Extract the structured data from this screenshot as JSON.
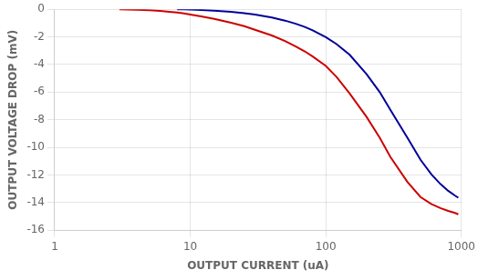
{
  "chart_data": {
    "type": "line",
    "xlabel": "OUTPUT CURRENT (uA)",
    "ylabel": "OUTPUT VOLTAGE DROP (mV)",
    "log": "x",
    "grid": true,
    "xlim": [
      1,
      1000
    ],
    "xticks": [
      1,
      10,
      100,
      1000
    ],
    "ylim": [
      -16,
      0
    ],
    "yticks": [
      0,
      -2,
      -4,
      -6,
      -8,
      -10,
      -12,
      -14,
      -16
    ],
    "series": [
      {
        "color": "#cc0000",
        "x": [
          3,
          4,
          5,
          6,
          7,
          8,
          9,
          10,
          12,
          15,
          20,
          25,
          30,
          40,
          50,
          60,
          70,
          80,
          100,
          120,
          150,
          200,
          250,
          300,
          400,
          500,
          600,
          700,
          800,
          900,
          950
        ],
        "values": [
          0.0,
          -0.03,
          -0.07,
          -0.12,
          -0.18,
          -0.24,
          -0.3,
          -0.38,
          -0.52,
          -0.7,
          -0.98,
          -1.22,
          -1.48,
          -1.9,
          -2.3,
          -2.7,
          -3.05,
          -3.42,
          -4.1,
          -4.9,
          -6.1,
          -7.8,
          -9.3,
          -10.7,
          -12.5,
          -13.6,
          -14.1,
          -14.4,
          -14.6,
          -14.75,
          -14.85
        ]
      },
      {
        "color": "#000099",
        "x": [
          8,
          9,
          10,
          12,
          15,
          20,
          25,
          30,
          40,
          50,
          60,
          70,
          80,
          100,
          120,
          150,
          200,
          250,
          300,
          400,
          500,
          600,
          700,
          800,
          900,
          950
        ],
        "values": [
          0.0,
          -0.01,
          -0.02,
          -0.05,
          -0.1,
          -0.18,
          -0.28,
          -0.38,
          -0.6,
          -0.82,
          -1.05,
          -1.28,
          -1.52,
          -2.02,
          -2.52,
          -3.3,
          -4.7,
          -6.0,
          -7.3,
          -9.3,
          -10.9,
          -11.95,
          -12.65,
          -13.15,
          -13.5,
          -13.65
        ]
      }
    ]
  }
}
